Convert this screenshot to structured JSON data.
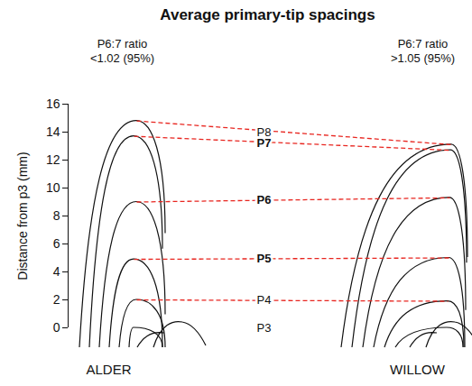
{
  "chart_data": {
    "type": "diagram",
    "title": "Average primary-tip spacings",
    "ylabel": "Distance from p3 (mm)",
    "ylim": [
      0,
      16
    ],
    "yticks": [
      0,
      2,
      4,
      6,
      8,
      10,
      12,
      14,
      16
    ],
    "primaries": [
      "P3",
      "P4",
      "P5",
      "P6",
      "P7",
      "P8"
    ],
    "bold": [
      false,
      false,
      true,
      true,
      true,
      false
    ],
    "color": "#e8251f",
    "line_style": "dashed",
    "series": [
      {
        "name": "ALDER",
        "annotation": [
          "P6:7 ratio",
          "<1.02 (95%)"
        ],
        "values": [
          0,
          2.0,
          4.9,
          9.0,
          13.7,
          14.8
        ]
      },
      {
        "name": "WILLOW",
        "annotation": [
          "P6:7 ratio",
          ">1.05 (95%)"
        ],
        "values": [
          0,
          1.9,
          5.0,
          9.3,
          12.7,
          13.1
        ]
      }
    ]
  }
}
